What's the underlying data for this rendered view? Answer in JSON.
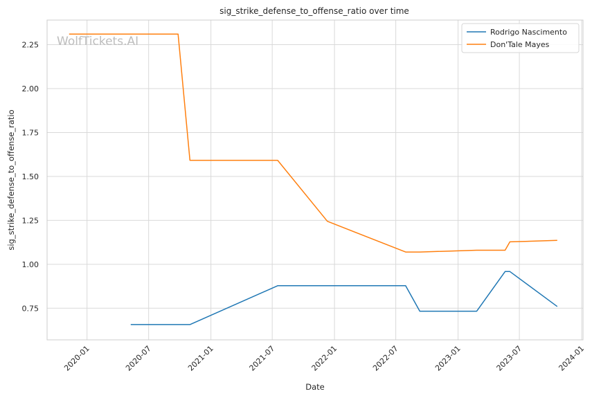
{
  "chart_data": {
    "type": "line",
    "title": "sig_strike_defense_to_offense_ratio over time",
    "xlabel": "Date",
    "ylabel": "sig_strike_defense_to_offense_ratio",
    "watermark": "WolfTickets.AI",
    "x_axis": {
      "kind": "date",
      "range": [
        "2019-09-05",
        "2024-01-05"
      ],
      "ticks": [
        "2020-01",
        "2020-07",
        "2021-01",
        "2021-07",
        "2022-01",
        "2022-07",
        "2023-01",
        "2023-07",
        "2024-01"
      ]
    },
    "y_axis": {
      "range": [
        0.57,
        2.39
      ],
      "ticks": [
        0.75,
        1.0,
        1.25,
        1.5,
        1.75,
        2.0,
        2.25
      ]
    },
    "grid": true,
    "legend": "top-right",
    "series": [
      {
        "name": "Rodrigo Nascimento",
        "color": "#1f77b4",
        "points": [
          [
            "2020-05-09",
            0.657
          ],
          [
            "2020-10-31",
            0.657
          ],
          [
            "2021-07-17",
            0.878
          ],
          [
            "2022-07-30",
            0.878
          ],
          [
            "2022-09-10",
            0.733
          ],
          [
            "2023-02-25",
            0.733
          ],
          [
            "2023-05-20",
            0.959
          ],
          [
            "2023-06-03",
            0.959
          ],
          [
            "2023-10-21",
            0.76
          ]
        ]
      },
      {
        "name": "Don'Tale Mayes",
        "color": "#ff7f0e",
        "points": [
          [
            "2019-11-09",
            2.31
          ],
          [
            "2020-09-26",
            2.31
          ],
          [
            "2020-10-31",
            1.592
          ],
          [
            "2021-07-17",
            1.592
          ],
          [
            "2021-12-11",
            1.245
          ],
          [
            "2022-07-30",
            1.07
          ],
          [
            "2022-09-10",
            1.07
          ],
          [
            "2023-02-25",
            1.08
          ],
          [
            "2023-05-20",
            1.08
          ],
          [
            "2023-06-03",
            1.128
          ],
          [
            "2023-10-21",
            1.136
          ]
        ]
      }
    ]
  }
}
